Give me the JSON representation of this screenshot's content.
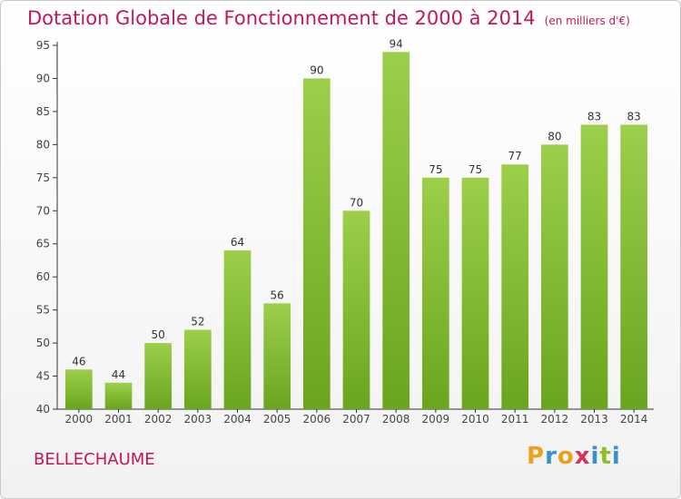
{
  "chart_data": {
    "type": "bar",
    "title": "Dotation Globale de Fonctionnement de 2000 à 2014",
    "subtitle": "(en milliers d'€)",
    "categories": [
      "2000",
      "2001",
      "2002",
      "2003",
      "2004",
      "2005",
      "2006",
      "2007",
      "2008",
      "2009",
      "2010",
      "2011",
      "2012",
      "2013",
      "2014"
    ],
    "values": [
      46,
      44,
      50,
      52,
      64,
      56,
      90,
      70,
      94,
      75,
      75,
      77,
      80,
      83,
      83
    ],
    "ylim": [
      40,
      95
    ],
    "yticks": [
      40,
      45,
      50,
      55,
      60,
      65,
      70,
      75,
      80,
      85,
      90,
      95
    ],
    "grid": false,
    "bar_color_top": "#9ccf4a",
    "bar_color_bottom": "#6aa51e"
  },
  "place_name": "BELLECHAUME",
  "logo": {
    "letters": [
      "P",
      "r",
      "o",
      "x",
      "i",
      "t",
      "i"
    ],
    "colors": [
      "#e8a21c",
      "#3a8fd0",
      "#e8a21c",
      "#d6325a",
      "#3a8fd0",
      "#8cbf2a",
      "#3a8fd0"
    ]
  }
}
